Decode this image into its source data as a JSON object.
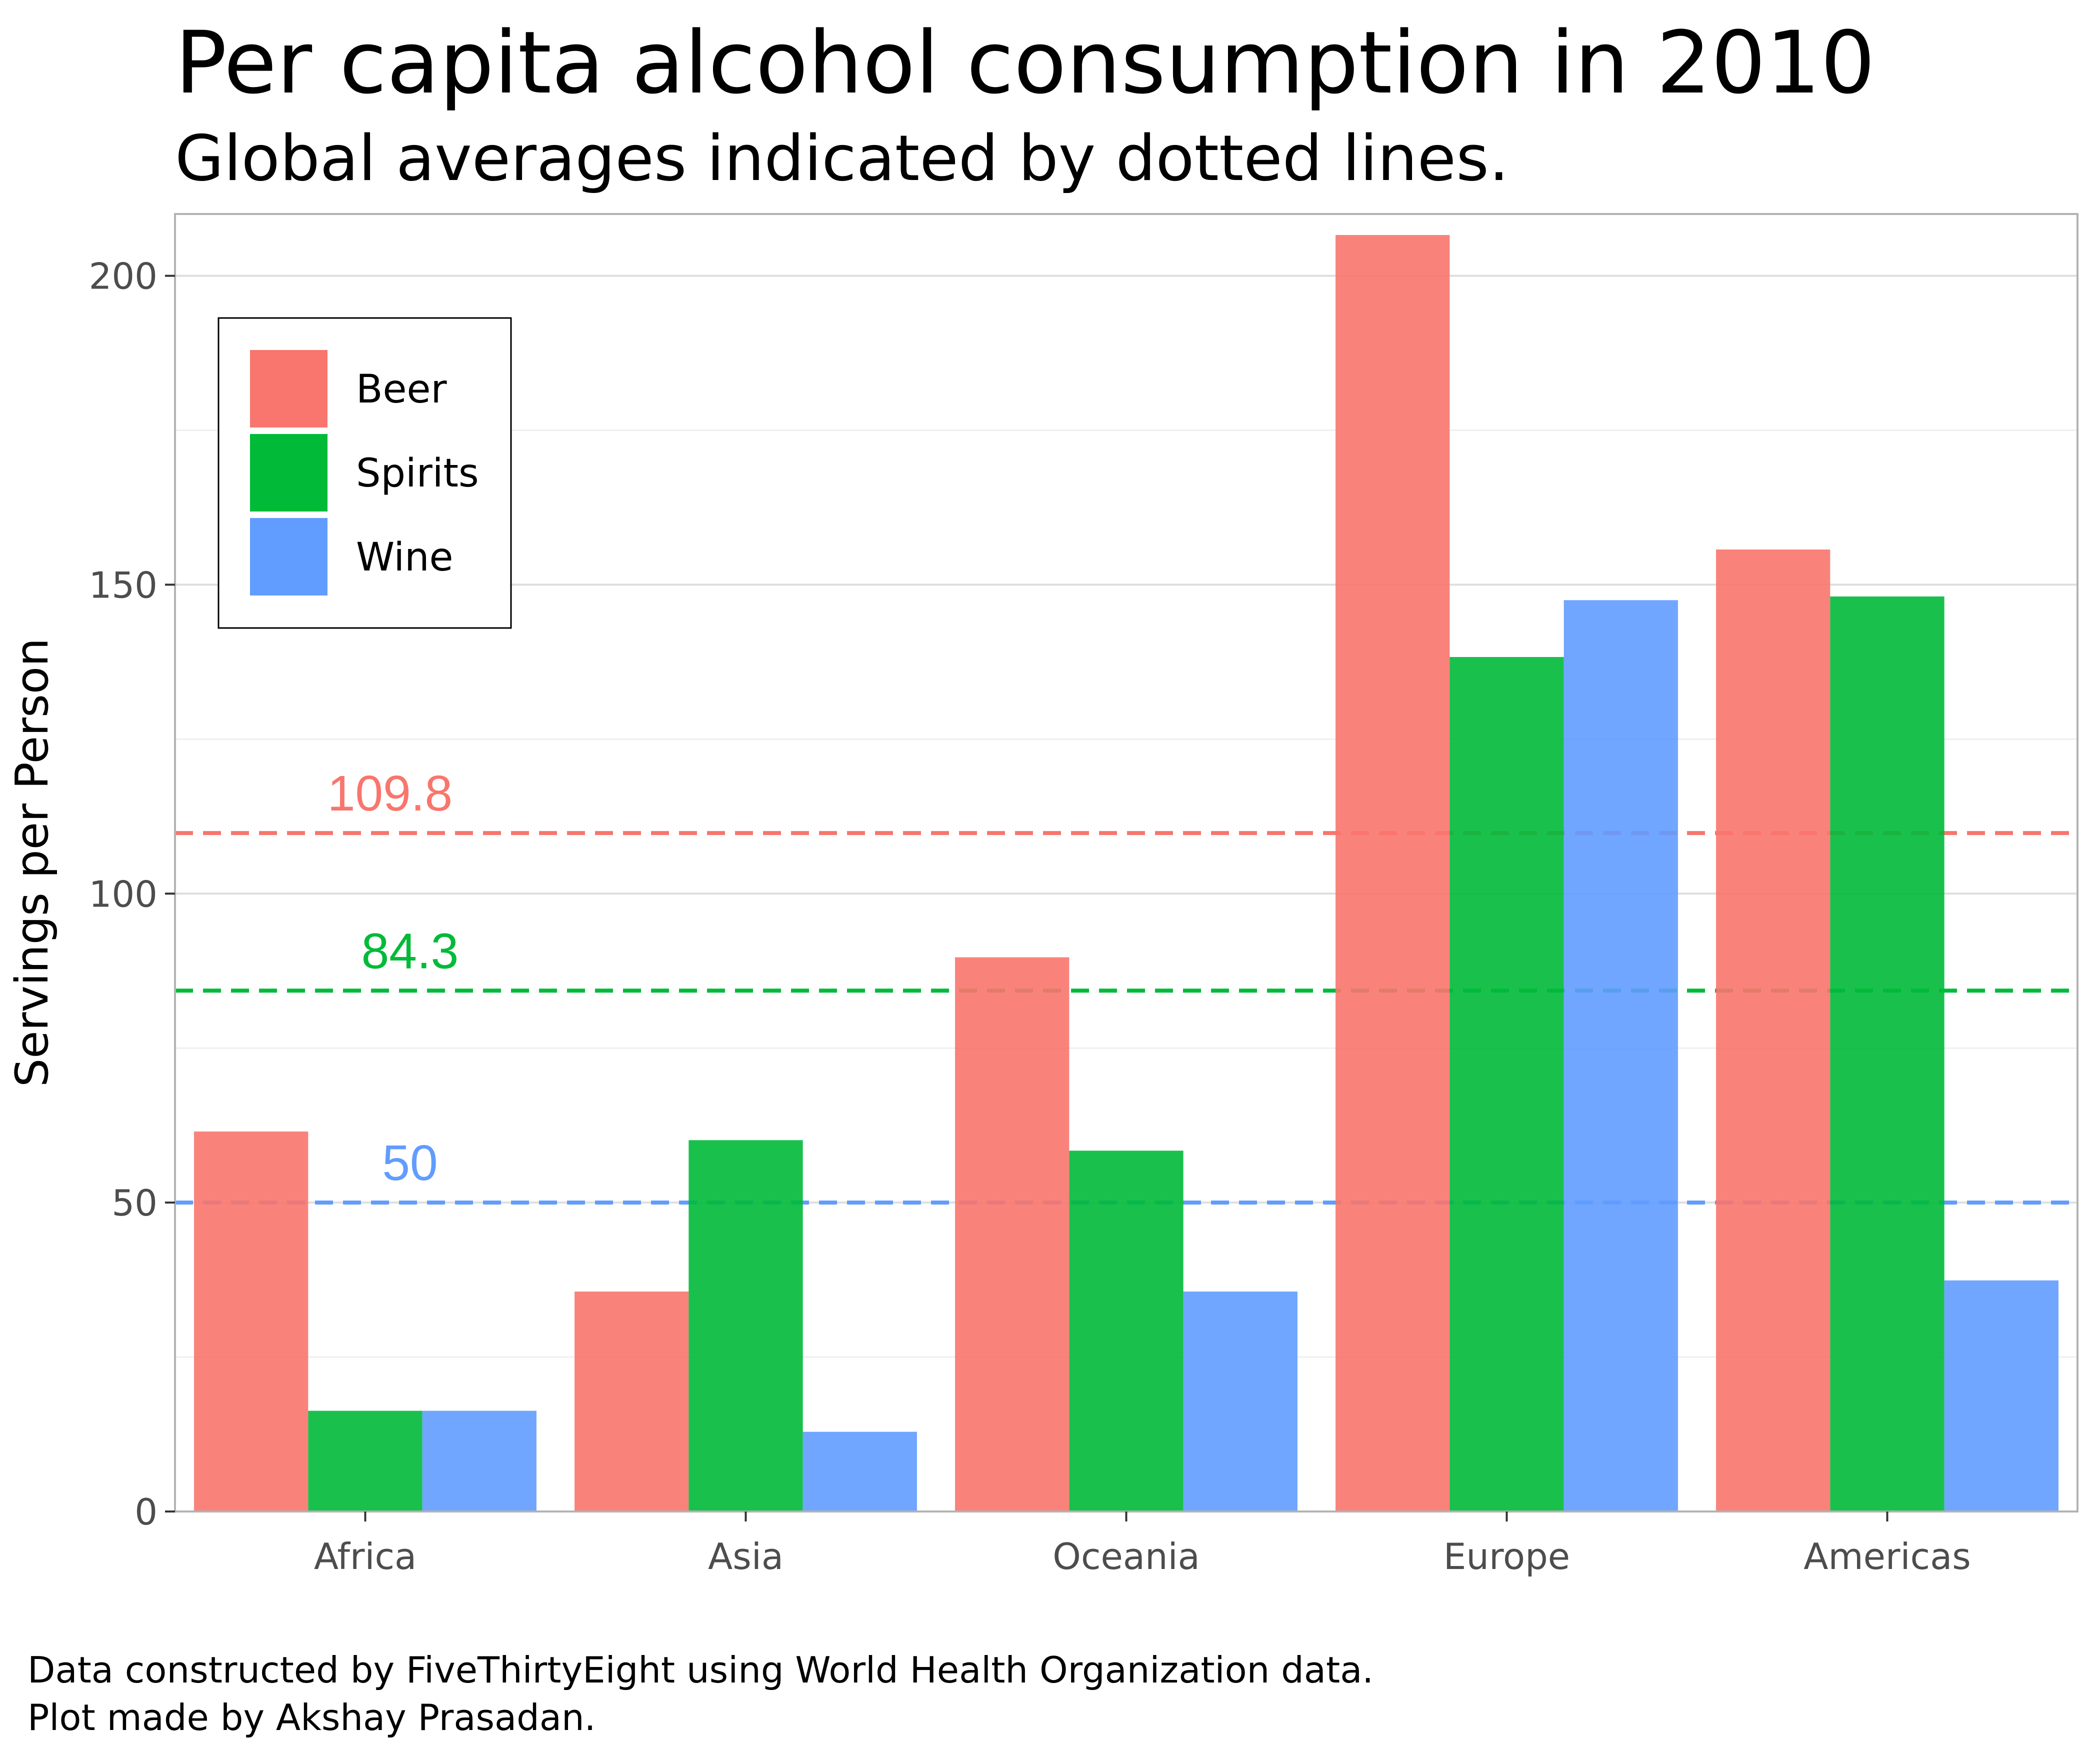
{
  "chart_data": {
    "type": "bar",
    "title": "Per capita alcohol consumption in 2010",
    "subtitle": "Global averages indicated by dotted lines.",
    "xlabel": "",
    "ylabel": "Servings per Person",
    "categories": [
      "Africa",
      "Asia",
      "Oceania",
      "Europe",
      "Americas"
    ],
    "series": [
      {
        "name": "Beer",
        "color": "#F8766D",
        "values": [
          61.5,
          35.6,
          89.7,
          206.6,
          155.7
        ]
      },
      {
        "name": "Spirits",
        "color": "#00BA38",
        "values": [
          16.3,
          60.1,
          58.4,
          138.3,
          148.1
        ]
      },
      {
        "name": "Wine",
        "color": "#619CFF",
        "values": [
          16.3,
          12.9,
          35.6,
          147.5,
          37.4
        ]
      }
    ],
    "averages": [
      {
        "series": "Beer",
        "value": 109.8,
        "label": "109.8",
        "color": "#F8766D"
      },
      {
        "series": "Spirits",
        "value": 84.3,
        "label": "84.3",
        "color": "#00BA38"
      },
      {
        "series": "Wine",
        "value": 50,
        "label": "50",
        "color": "#619CFF"
      }
    ],
    "ylim": [
      0,
      210
    ],
    "yticks": [
      0,
      50,
      100,
      150,
      200
    ],
    "ytick_labels": [
      "0",
      "50",
      "100",
      "150",
      "200"
    ],
    "grid": true,
    "legend_position": "top-left",
    "caption": [
      "Data constructed by FiveThirtyEight using World Health Organization data.",
      "Plot made by Akshay Prasadan."
    ]
  }
}
